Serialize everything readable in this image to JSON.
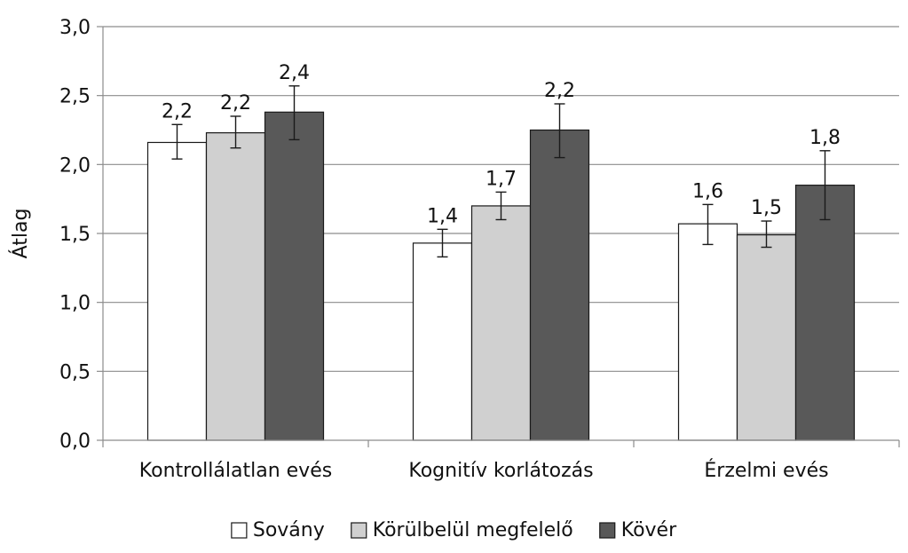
{
  "chart_data": {
    "type": "bar",
    "ylabel": "Átlag",
    "ylim": [
      0,
      3
    ],
    "yticks": [
      "0,0",
      "0,5",
      "1,0",
      "1,5",
      "2,0",
      "2,5",
      "3,0"
    ],
    "ytick_values": [
      0,
      0.5,
      1,
      1.5,
      2,
      2.5,
      3
    ],
    "grid": true,
    "legend_position": "bottom-center",
    "categories": [
      "Kontrollálatlan evés",
      "Kognitív korlátozás",
      "Érzelmi evés"
    ],
    "series": [
      {
        "name": "Sovány",
        "color": "#ffffff",
        "values": [
          2.16,
          1.43,
          1.57
        ],
        "labels": [
          "2,2",
          "1,4",
          "1,6"
        ],
        "err_low": [
          2.04,
          1.33,
          1.42
        ],
        "err_high": [
          2.29,
          1.53,
          1.71
        ]
      },
      {
        "name": "Körülbelül megfelelő",
        "color": "#d0d0d0",
        "values": [
          2.23,
          1.7,
          1.49
        ],
        "labels": [
          "2,2",
          "1,7",
          "1,5"
        ],
        "err_low": [
          2.12,
          1.6,
          1.4
        ],
        "err_high": [
          2.35,
          1.8,
          1.59
        ]
      },
      {
        "name": "Kövér",
        "color": "#595959",
        "values": [
          2.38,
          2.25,
          1.85
        ],
        "labels": [
          "2,4",
          "2,2",
          "1,8"
        ],
        "err_low": [
          2.18,
          2.05,
          1.6
        ],
        "err_high": [
          2.57,
          2.44,
          2.1
        ]
      }
    ]
  }
}
